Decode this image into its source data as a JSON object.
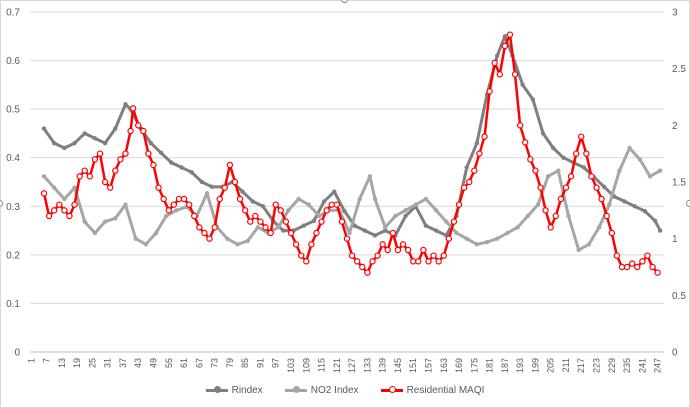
{
  "chart_data": {
    "type": "line",
    "x_tick_labels": [
      "1",
      "7",
      "13",
      "19",
      "25",
      "31",
      "37",
      "43",
      "49",
      "55",
      "61",
      "67",
      "73",
      "79",
      "85",
      "91",
      "97",
      "103",
      "109",
      "115",
      "121",
      "127",
      "133",
      "139",
      "145",
      "151",
      "157",
      "163",
      "169",
      "175",
      "181",
      "187",
      "193",
      "199",
      "205",
      "211",
      "217",
      "223",
      "229",
      "235",
      "241",
      "247"
    ],
    "x_range": [
      1,
      249
    ],
    "y_left": {
      "min": 0,
      "max": 0.7,
      "ticks": [
        "0",
        "0.1",
        "0.2",
        "0.3",
        "0.4",
        "0.5",
        "0.6",
        "0.7"
      ]
    },
    "y_right": {
      "min": 0,
      "max": 3,
      "ticks": [
        "0",
        "0.5",
        "1",
        "1.5",
        "2",
        "2.5",
        "3"
      ]
    },
    "grid": "horizontal",
    "legend_position": "bottom",
    "series": [
      {
        "name": "Rindex",
        "axis": "left",
        "color": "#7f7f7f",
        "points": [
          [
            6,
            0.46
          ],
          [
            10,
            0.43
          ],
          [
            14,
            0.42
          ],
          [
            18,
            0.43
          ],
          [
            22,
            0.45
          ],
          [
            26,
            0.44
          ],
          [
            30,
            0.43
          ],
          [
            34,
            0.46
          ],
          [
            38,
            0.51
          ],
          [
            40,
            0.5
          ],
          [
            44,
            0.46
          ],
          [
            48,
            0.43
          ],
          [
            52,
            0.41
          ],
          [
            56,
            0.39
          ],
          [
            60,
            0.38
          ],
          [
            64,
            0.37
          ],
          [
            68,
            0.35
          ],
          [
            72,
            0.34
          ],
          [
            76,
            0.34
          ],
          [
            80,
            0.35
          ],
          [
            84,
            0.33
          ],
          [
            88,
            0.31
          ],
          [
            92,
            0.3
          ],
          [
            96,
            0.27
          ],
          [
            100,
            0.25
          ],
          [
            104,
            0.25
          ],
          [
            108,
            0.26
          ],
          [
            112,
            0.27
          ],
          [
            116,
            0.31
          ],
          [
            120,
            0.33
          ],
          [
            124,
            0.29
          ],
          [
            128,
            0.26
          ],
          [
            132,
            0.25
          ],
          [
            136,
            0.24
          ],
          [
            140,
            0.25
          ],
          [
            144,
            0.24
          ],
          [
            148,
            0.28
          ],
          [
            152,
            0.3
          ],
          [
            156,
            0.26
          ],
          [
            160,
            0.25
          ],
          [
            164,
            0.24
          ],
          [
            168,
            0.28
          ],
          [
            172,
            0.38
          ],
          [
            176,
            0.43
          ],
          [
            180,
            0.53
          ],
          [
            184,
            0.61
          ],
          [
            187,
            0.65
          ],
          [
            190,
            0.61
          ],
          [
            194,
            0.55
          ],
          [
            198,
            0.52
          ],
          [
            202,
            0.45
          ],
          [
            206,
            0.42
          ],
          [
            210,
            0.4
          ],
          [
            214,
            0.39
          ],
          [
            218,
            0.38
          ],
          [
            222,
            0.36
          ],
          [
            226,
            0.34
          ],
          [
            230,
            0.32
          ],
          [
            234,
            0.31
          ],
          [
            238,
            0.3
          ],
          [
            242,
            0.29
          ],
          [
            246,
            0.27
          ],
          [
            248,
            0.25
          ]
        ]
      },
      {
        "name": "NO2 Index",
        "axis": "right",
        "color": "#a6a6a6",
        "points": [
          [
            6,
            1.55
          ],
          [
            10,
            1.45
          ],
          [
            14,
            1.35
          ],
          [
            18,
            1.45
          ],
          [
            22,
            1.15
          ],
          [
            26,
            1.05
          ],
          [
            30,
            1.15
          ],
          [
            34,
            1.18
          ],
          [
            38,
            1.3
          ],
          [
            42,
            1.0
          ],
          [
            46,
            0.95
          ],
          [
            50,
            1.05
          ],
          [
            54,
            1.2
          ],
          [
            58,
            1.25
          ],
          [
            62,
            1.28
          ],
          [
            66,
            1.2
          ],
          [
            70,
            1.4
          ],
          [
            74,
            1.1
          ],
          [
            78,
            1.0
          ],
          [
            82,
            0.95
          ],
          [
            86,
            0.98
          ],
          [
            90,
            1.1
          ],
          [
            94,
            1.05
          ],
          [
            98,
            1.1
          ],
          [
            102,
            1.25
          ],
          [
            106,
            1.35
          ],
          [
            110,
            1.3
          ],
          [
            114,
            1.2
          ],
          [
            118,
            1.25
          ],
          [
            122,
            1.25
          ],
          [
            126,
            1.05
          ],
          [
            130,
            1.35
          ],
          [
            134,
            1.55
          ],
          [
            136,
            1.35
          ],
          [
            140,
            1.1
          ],
          [
            144,
            1.2
          ],
          [
            148,
            1.25
          ],
          [
            152,
            1.3
          ],
          [
            156,
            1.35
          ],
          [
            160,
            1.25
          ],
          [
            164,
            1.15
          ],
          [
            168,
            1.05
          ],
          [
            172,
            1.0
          ],
          [
            176,
            0.95
          ],
          [
            180,
            0.97
          ],
          [
            184,
            1.0
          ],
          [
            188,
            1.05
          ],
          [
            192,
            1.1
          ],
          [
            196,
            1.2
          ],
          [
            200,
            1.3
          ],
          [
            204,
            1.55
          ],
          [
            208,
            1.6
          ],
          [
            212,
            1.2
          ],
          [
            216,
            0.9
          ],
          [
            220,
            0.95
          ],
          [
            224,
            1.1
          ],
          [
            228,
            1.3
          ],
          [
            232,
            1.6
          ],
          [
            236,
            1.8
          ],
          [
            240,
            1.7
          ],
          [
            244,
            1.55
          ],
          [
            248,
            1.6
          ]
        ]
      },
      {
        "name": "Residential MAQI",
        "axis": "right",
        "color": "#ff0000",
        "points": [
          [
            6,
            1.4
          ],
          [
            8,
            1.2
          ],
          [
            10,
            1.25
          ],
          [
            12,
            1.3
          ],
          [
            14,
            1.25
          ],
          [
            16,
            1.2
          ],
          [
            18,
            1.3
          ],
          [
            20,
            1.55
          ],
          [
            22,
            1.6
          ],
          [
            24,
            1.55
          ],
          [
            26,
            1.7
          ],
          [
            28,
            1.75
          ],
          [
            30,
            1.5
          ],
          [
            32,
            1.45
          ],
          [
            34,
            1.6
          ],
          [
            36,
            1.7
          ],
          [
            38,
            1.75
          ],
          [
            40,
            1.95
          ],
          [
            41,
            2.15
          ],
          [
            43,
            2.0
          ],
          [
            45,
            1.95
          ],
          [
            47,
            1.75
          ],
          [
            49,
            1.65
          ],
          [
            51,
            1.45
          ],
          [
            53,
            1.35
          ],
          [
            55,
            1.25
          ],
          [
            57,
            1.3
          ],
          [
            59,
            1.35
          ],
          [
            61,
            1.35
          ],
          [
            63,
            1.3
          ],
          [
            65,
            1.2
          ],
          [
            67,
            1.1
          ],
          [
            69,
            1.05
          ],
          [
            71,
            1.0
          ],
          [
            73,
            1.1
          ],
          [
            75,
            1.35
          ],
          [
            77,
            1.45
          ],
          [
            79,
            1.65
          ],
          [
            81,
            1.5
          ],
          [
            83,
            1.35
          ],
          [
            85,
            1.25
          ],
          [
            87,
            1.15
          ],
          [
            89,
            1.2
          ],
          [
            91,
            1.15
          ],
          [
            93,
            1.1
          ],
          [
            95,
            1.05
          ],
          [
            97,
            1.3
          ],
          [
            99,
            1.25
          ],
          [
            101,
            1.15
          ],
          [
            103,
            1.05
          ],
          [
            105,
            0.95
          ],
          [
            107,
            0.85
          ],
          [
            109,
            0.8
          ],
          [
            111,
            0.95
          ],
          [
            113,
            1.05
          ],
          [
            115,
            1.15
          ],
          [
            117,
            1.25
          ],
          [
            119,
            1.3
          ],
          [
            121,
            1.3
          ],
          [
            123,
            1.15
          ],
          [
            125,
            1.0
          ],
          [
            127,
            0.85
          ],
          [
            129,
            0.8
          ],
          [
            131,
            0.75
          ],
          [
            133,
            0.7
          ],
          [
            135,
            0.8
          ],
          [
            137,
            0.85
          ],
          [
            139,
            0.95
          ],
          [
            141,
            0.9
          ],
          [
            143,
            1.05
          ],
          [
            145,
            0.9
          ],
          [
            147,
            0.95
          ],
          [
            149,
            0.9
          ],
          [
            151,
            0.8
          ],
          [
            153,
            0.8
          ],
          [
            155,
            0.9
          ],
          [
            157,
            0.8
          ],
          [
            159,
            0.85
          ],
          [
            161,
            0.8
          ],
          [
            163,
            0.85
          ],
          [
            165,
            1.0
          ],
          [
            167,
            1.15
          ],
          [
            169,
            1.3
          ],
          [
            171,
            1.45
          ],
          [
            173,
            1.5
          ],
          [
            175,
            1.6
          ],
          [
            177,
            1.75
          ],
          [
            179,
            1.9
          ],
          [
            181,
            2.3
          ],
          [
            183,
            2.55
          ],
          [
            185,
            2.45
          ],
          [
            187,
            2.7
          ],
          [
            189,
            2.8
          ],
          [
            191,
            2.45
          ],
          [
            193,
            2.0
          ],
          [
            195,
            1.85
          ],
          [
            197,
            1.7
          ],
          [
            199,
            1.6
          ],
          [
            201,
            1.45
          ],
          [
            203,
            1.25
          ],
          [
            205,
            1.1
          ],
          [
            207,
            1.2
          ],
          [
            209,
            1.35
          ],
          [
            211,
            1.45
          ],
          [
            213,
            1.55
          ],
          [
            215,
            1.75
          ],
          [
            217,
            1.9
          ],
          [
            219,
            1.75
          ],
          [
            221,
            1.55
          ],
          [
            223,
            1.45
          ],
          [
            225,
            1.35
          ],
          [
            227,
            1.2
          ],
          [
            229,
            1.05
          ],
          [
            231,
            0.85
          ],
          [
            233,
            0.75
          ],
          [
            235,
            0.75
          ],
          [
            237,
            0.78
          ],
          [
            239,
            0.75
          ],
          [
            241,
            0.8
          ],
          [
            243,
            0.85
          ],
          [
            245,
            0.75
          ],
          [
            247,
            0.7
          ]
        ]
      }
    ]
  }
}
